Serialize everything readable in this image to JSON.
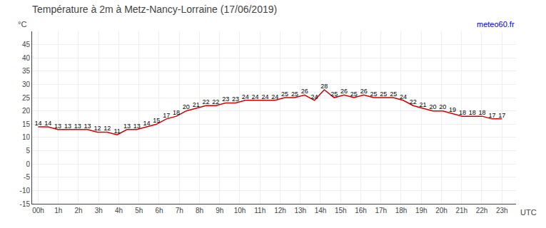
{
  "chart_data": {
    "type": "line",
    "title": "Température à 2m à Metz-Nancy-Lorraine (17/06/2019)",
    "ylabel": "°C",
    "xlabel": "UTC",
    "annotations": [
      {
        "text": "meteo60.fr",
        "color": "#0000cc"
      }
    ],
    "x": [
      0,
      0.48936170212766,
      0.97872340425532,
      1.46808510638298,
      1.95744680851064,
      2.4468085106383,
      2.93617021276596,
      3.42553191489362,
      3.91489361702128,
      4.40425531914894,
      4.8936170212766,
      5.38297872340426,
      5.87234042553192,
      6.36170212765957,
      6.85106382978723,
      7.34042553191489,
      7.82978723404255,
      8.31914893617021,
      8.80851063829787,
      9.29787234042553,
      9.78723404255319,
      10.27659574468085,
      10.76595744680851,
      11.25531914893617,
      11.74468085106383,
      12.23404255319149,
      12.72340425531915,
      13.21276595744681,
      13.70212765957447,
      14.19148936170213,
      14.68085106382979,
      15.17021276595745,
      15.65957446808511,
      16.14893617021277,
      16.63829787234043,
      17.12765957446809,
      17.61702127659574,
      18.1063829787234,
      18.59574468085106,
      19.08510638297872,
      19.57446808510638,
      20.06382978723404,
      20.5531914893617,
      21.04255319148936,
      21.53191489361702,
      22.02127659574468,
      22.51063829787234,
      23
    ],
    "values": [
      14,
      14,
      13,
      13,
      13,
      13,
      12,
      12,
      11,
      13,
      13,
      14,
      15,
      17,
      18,
      20,
      21,
      22,
      22,
      23,
      23,
      24,
      24,
      24,
      24,
      25,
      25,
      26,
      24,
      28,
      25,
      26,
      25,
      26,
      25,
      25,
      25,
      24,
      22,
      21,
      20,
      20,
      19,
      18,
      18,
      18,
      17,
      17
    ],
    "color": "#cc0000",
    "data_labels": true,
    "grid": true,
    "xlim": [
      -0.3,
      23.7
    ],
    "xticks": [
      {
        "value": 0,
        "label": "00h"
      },
      {
        "value": 1,
        "label": "1h"
      },
      {
        "value": 2,
        "label": "2h"
      },
      {
        "value": 3,
        "label": "3h"
      },
      {
        "value": 4,
        "label": "4h"
      },
      {
        "value": 5,
        "label": "5h"
      },
      {
        "value": 6,
        "label": "6h"
      },
      {
        "value": 7,
        "label": "7h"
      },
      {
        "value": 8,
        "label": "8h"
      },
      {
        "value": 9,
        "label": "9h"
      },
      {
        "value": 10,
        "label": "10h"
      },
      {
        "value": 11,
        "label": "11h"
      },
      {
        "value": 12,
        "label": "12h"
      },
      {
        "value": 13,
        "label": "13h"
      },
      {
        "value": 14,
        "label": "14h"
      },
      {
        "value": 15,
        "label": "15h"
      },
      {
        "value": 16,
        "label": "16h"
      },
      {
        "value": 17,
        "label": "17h"
      },
      {
        "value": 18,
        "label": "18h"
      },
      {
        "value": 19,
        "label": "19h"
      },
      {
        "value": 20,
        "label": "20h"
      },
      {
        "value": 21,
        "label": "21h"
      },
      {
        "value": 22,
        "label": "22h"
      },
      {
        "value": 23,
        "label": "23h"
      }
    ],
    "ylim": [
      -15,
      50
    ],
    "yticks": [
      -15,
      -10,
      -5,
      0,
      5,
      10,
      15,
      20,
      25,
      30,
      35,
      40,
      45
    ]
  }
}
